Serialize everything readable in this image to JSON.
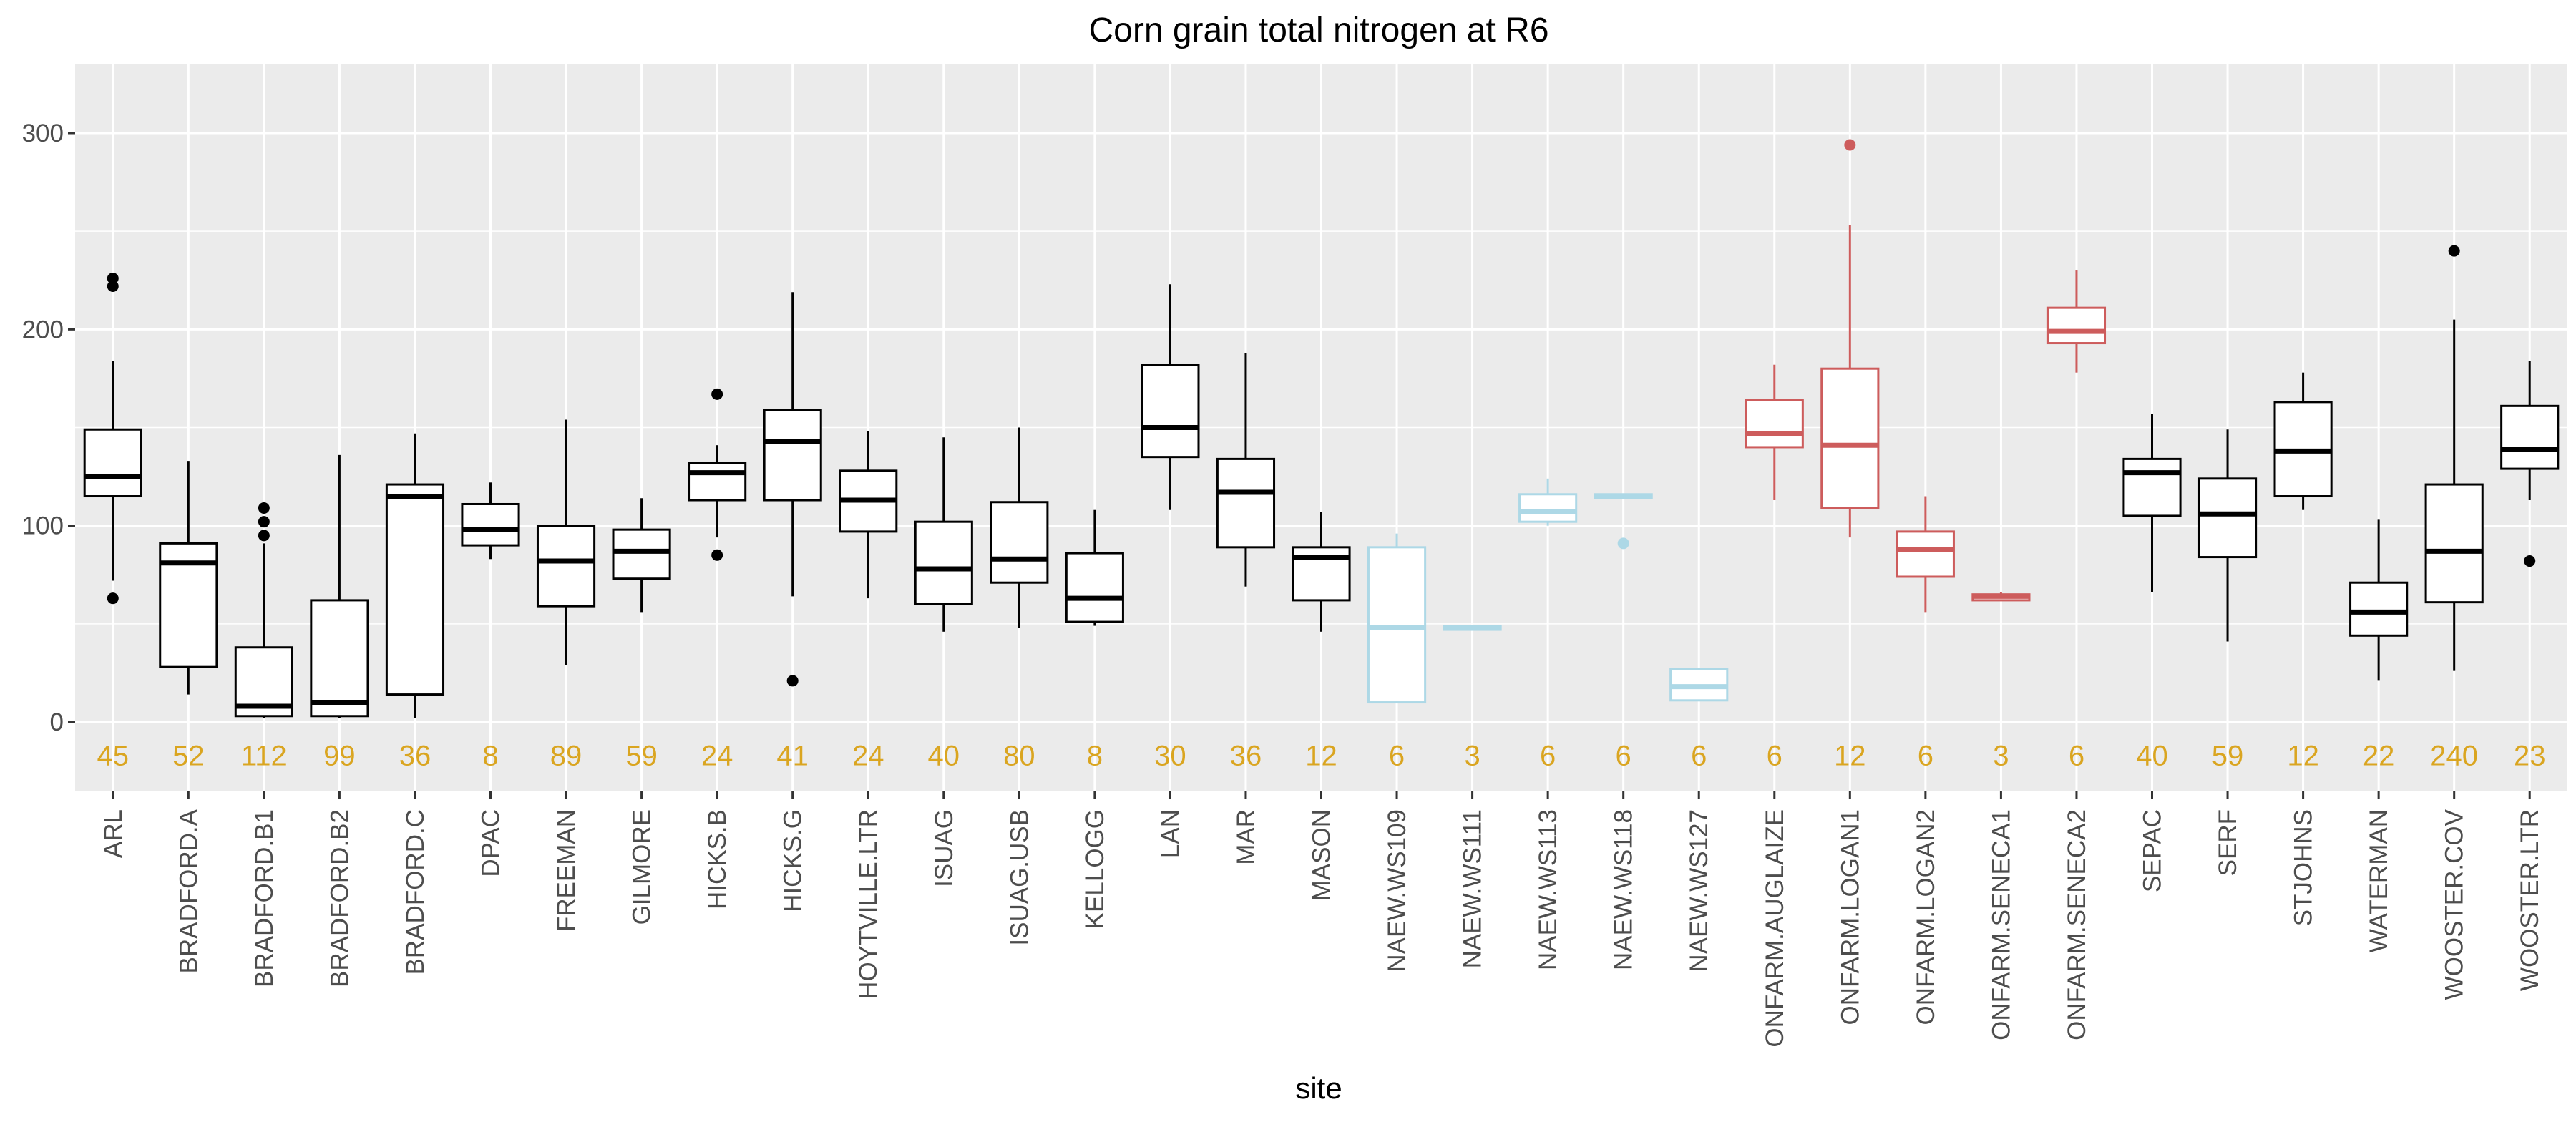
{
  "chart_data": {
    "type": "boxplot",
    "title": "Corn grain total nitrogen at R6",
    "xlabel": "site",
    "ylabel": "",
    "ylim": [
      -35,
      335
    ],
    "yticks": [
      0,
      100,
      200,
      300
    ],
    "grid": true,
    "colors": {
      "panel": "#EBEBEB",
      "grid": "#FFFFFF",
      "default": "#000000",
      "naew": "#ADD8E6",
      "onfarm": "#CD5C5C",
      "count": "#DAA520",
      "text": "#4D4D4D"
    },
    "boxes": [
      {
        "site": "ARL",
        "n": "45",
        "group": "default",
        "lower": 72,
        "q1": 115,
        "median": 125,
        "q3": 149,
        "upper": 184,
        "outliers": [
          63,
          222,
          226
        ]
      },
      {
        "site": "BRADFORD.A",
        "n": "52",
        "group": "default",
        "lower": 14,
        "q1": 28,
        "median": 81,
        "q3": 91,
        "upper": 133,
        "outliers": []
      },
      {
        "site": "BRADFORD.B1",
        "n": "112",
        "group": "default",
        "lower": 2,
        "q1": 3,
        "median": 8,
        "q3": 38,
        "upper": 91,
        "outliers": [
          95,
          102,
          109
        ]
      },
      {
        "site": "BRADFORD.B2",
        "n": "99",
        "group": "default",
        "lower": 2,
        "q1": 3,
        "median": 10,
        "q3": 62,
        "upper": 136,
        "outliers": []
      },
      {
        "site": "BRADFORD.C",
        "n": "36",
        "group": "default",
        "lower": 2,
        "q1": 14,
        "median": 115,
        "q3": 121,
        "upper": 147,
        "outliers": []
      },
      {
        "site": "DPAC",
        "n": "8",
        "group": "default",
        "lower": 83,
        "q1": 90,
        "median": 98,
        "q3": 111,
        "upper": 122,
        "outliers": []
      },
      {
        "site": "FREEMAN",
        "n": "89",
        "group": "default",
        "lower": 29,
        "q1": 59,
        "median": 82,
        "q3": 100,
        "upper": 154,
        "outliers": []
      },
      {
        "site": "GILMORE",
        "n": "59",
        "group": "default",
        "lower": 56,
        "q1": 73,
        "median": 87,
        "q3": 98,
        "upper": 114,
        "outliers": []
      },
      {
        "site": "HICKS.B",
        "n": "24",
        "group": "default",
        "lower": 94,
        "q1": 113,
        "median": 127,
        "q3": 132,
        "upper": 141,
        "outliers": [
          85,
          167
        ]
      },
      {
        "site": "HICKS.G",
        "n": "41",
        "group": "default",
        "lower": 64,
        "q1": 113,
        "median": 143,
        "q3": 159,
        "upper": 219,
        "outliers": [
          21
        ]
      },
      {
        "site": "HOYTVILLE.LTR",
        "n": "24",
        "group": "default",
        "lower": 63,
        "q1": 97,
        "median": 113,
        "q3": 128,
        "upper": 148,
        "outliers": []
      },
      {
        "site": "ISUAG",
        "n": "40",
        "group": "default",
        "lower": 46,
        "q1": 60,
        "median": 78,
        "q3": 102,
        "upper": 145,
        "outliers": []
      },
      {
        "site": "ISUAG.USB",
        "n": "80",
        "group": "default",
        "lower": 48,
        "q1": 71,
        "median": 83,
        "q3": 112,
        "upper": 150,
        "outliers": []
      },
      {
        "site": "KELLOGG",
        "n": "8",
        "group": "default",
        "lower": 49,
        "q1": 51,
        "median": 63,
        "q3": 86,
        "upper": 108,
        "outliers": []
      },
      {
        "site": "LAN",
        "n": "30",
        "group": "default",
        "lower": 108,
        "q1": 135,
        "median": 150,
        "q3": 182,
        "upper": 223,
        "outliers": []
      },
      {
        "site": "MAR",
        "n": "36",
        "group": "default",
        "lower": 69,
        "q1": 89,
        "median": 117,
        "q3": 134,
        "upper": 188,
        "outliers": []
      },
      {
        "site": "MASON",
        "n": "12",
        "group": "default",
        "lower": 46,
        "q1": 62,
        "median": 84,
        "q3": 89,
        "upper": 107,
        "outliers": []
      },
      {
        "site": "NAEW.WS109",
        "n": "6",
        "group": "naew",
        "lower": 10,
        "q1": 10,
        "median": 48,
        "q3": 89,
        "upper": 96,
        "outliers": []
      },
      {
        "site": "NAEW.WS111",
        "n": "3",
        "group": "naew",
        "lower": 48,
        "q1": 47,
        "median": 48,
        "q3": 49,
        "upper": 48,
        "outliers": []
      },
      {
        "site": "NAEW.WS113",
        "n": "6",
        "group": "naew",
        "lower": 100,
        "q1": 102,
        "median": 107,
        "q3": 116,
        "upper": 124,
        "outliers": []
      },
      {
        "site": "NAEW.WS118",
        "n": "6",
        "group": "naew",
        "lower": 115,
        "q1": 114,
        "median": 115,
        "q3": 116,
        "upper": 115,
        "outliers": [
          91
        ]
      },
      {
        "site": "NAEW.WS127",
        "n": "6",
        "group": "naew",
        "lower": 11,
        "q1": 11,
        "median": 18,
        "q3": 27,
        "upper": 27,
        "outliers": []
      },
      {
        "site": "ONFARM.AUGLAIZE",
        "n": "6",
        "group": "onfarm",
        "lower": 113,
        "q1": 140,
        "median": 147,
        "q3": 164,
        "upper": 182,
        "outliers": []
      },
      {
        "site": "ONFARM.LOGAN1",
        "n": "12",
        "group": "onfarm",
        "lower": 94,
        "q1": 109,
        "median": 141,
        "q3": 180,
        "upper": 253,
        "outliers": [
          294
        ]
      },
      {
        "site": "ONFARM.LOGAN2",
        "n": "6",
        "group": "onfarm",
        "lower": 56,
        "q1": 74,
        "median": 88,
        "q3": 97,
        "upper": 115,
        "outliers": []
      },
      {
        "site": "ONFARM.SENECA1",
        "n": "3",
        "group": "onfarm",
        "lower": 62,
        "q1": 62,
        "median": 64,
        "q3": 65,
        "upper": 66,
        "outliers": []
      },
      {
        "site": "ONFARM.SENECA2",
        "n": "6",
        "group": "onfarm",
        "lower": 178,
        "q1": 193,
        "median": 199,
        "q3": 211,
        "upper": 230,
        "outliers": []
      },
      {
        "site": "SEPAC",
        "n": "40",
        "group": "default",
        "lower": 66,
        "q1": 105,
        "median": 127,
        "q3": 134,
        "upper": 157,
        "outliers": []
      },
      {
        "site": "SERF",
        "n": "59",
        "group": "default",
        "lower": 41,
        "q1": 84,
        "median": 106,
        "q3": 124,
        "upper": 149,
        "outliers": []
      },
      {
        "site": "STJOHNS",
        "n": "12",
        "group": "default",
        "lower": 108,
        "q1": 115,
        "median": 138,
        "q3": 163,
        "upper": 178,
        "outliers": []
      },
      {
        "site": "WATERMAN",
        "n": "22",
        "group": "default",
        "lower": 21,
        "q1": 44,
        "median": 56,
        "q3": 71,
        "upper": 103,
        "outliers": []
      },
      {
        "site": "WOOSTER.COV",
        "n": "240",
        "group": "default",
        "lower": 26,
        "q1": 61,
        "median": 87,
        "q3": 121,
        "upper": 205,
        "outliers": [
          240
        ]
      },
      {
        "site": "WOOSTER.LTR",
        "n": "23",
        "group": "default",
        "lower": 113,
        "q1": 129,
        "median": 139,
        "q3": 161,
        "upper": 184,
        "outliers": [
          82
        ]
      }
    ]
  }
}
